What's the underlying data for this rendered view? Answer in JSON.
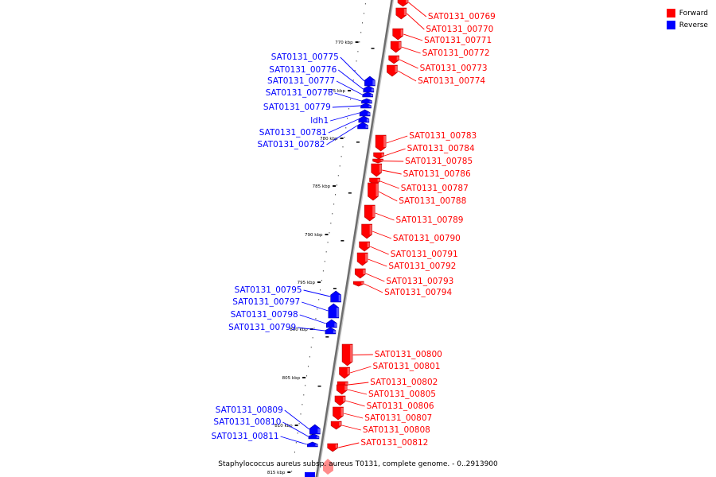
{
  "legend": {
    "forward_label": "Forward",
    "reverse_label": "Reverse",
    "forward_color": "#ff0000",
    "reverse_color": "#0000ff"
  },
  "caption": "Staphylococcus aureus subsp. aureus T0131, complete genome. - 0..2913900",
  "ticks": [
    "770 kbp",
    "775 kbp",
    "780 kbp",
    "785 kbp",
    "790 kbp",
    "795 kbp",
    "800 kbp",
    "805 kbp",
    "810 kbp",
    "815 kbp"
  ],
  "forward_genes": [
    "SAT0131_00769",
    "SAT0131_00770",
    "SAT0131_00771",
    "SAT0131_00772",
    "SAT0131_00773",
    "SAT0131_00774",
    "SAT0131_00783",
    "SAT0131_00784",
    "SAT0131_00785",
    "SAT0131_00786",
    "SAT0131_00787",
    "SAT0131_00788",
    "SAT0131_00789",
    "SAT0131_00790",
    "SAT0131_00791",
    "SAT0131_00792",
    "SAT0131_00793",
    "SAT0131_00794",
    "SAT0131_00800",
    "SAT0131_00801",
    "SAT0131_00802",
    "SAT0131_00805",
    "SAT0131_00806",
    "SAT0131_00807",
    "SAT0131_00808",
    "SAT0131_00812"
  ],
  "reverse_genes": [
    "SAT0131_00775",
    "SAT0131_00776",
    "SAT0131_00777",
    "SAT0131_00778",
    "SAT0131_00779",
    "ldh1",
    "SAT0131_00781",
    "SAT0131_00782",
    "SAT0131_00795",
    "SAT0131_00797",
    "SAT0131_00798",
    "SAT0131_00799",
    "SAT0131_00809",
    "SAT0131_00810",
    "SAT0131_00811"
  ]
}
